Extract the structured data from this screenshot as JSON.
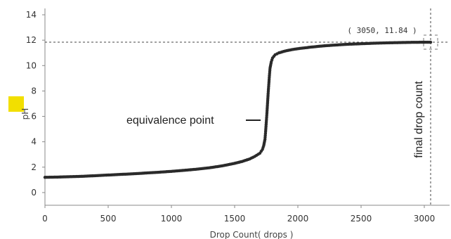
{
  "chart_data": {
    "type": "scatter",
    "xlabel": "Drop Count( drops )",
    "ylabel": "pH",
    "xlim": [
      0,
      3200
    ],
    "ylim": [
      -1,
      14.5
    ],
    "x_ticks": [
      "0",
      "500",
      "1000",
      "1500",
      "2000",
      "2500",
      "3000"
    ],
    "y_ticks": [
      "0",
      "2",
      "4",
      "6",
      "8",
      "10",
      "12",
      "14"
    ],
    "grid": false,
    "legend": "none",
    "series": [
      {
        "color": "#2a2a2a",
        "points": [
          [
            0,
            1.2
          ],
          [
            100,
            1.22
          ],
          [
            200,
            1.25
          ],
          [
            300,
            1.28
          ],
          [
            400,
            1.33
          ],
          [
            500,
            1.38
          ],
          [
            600,
            1.43
          ],
          [
            700,
            1.48
          ],
          [
            800,
            1.54
          ],
          [
            900,
            1.6
          ],
          [
            1000,
            1.67
          ],
          [
            1100,
            1.75
          ],
          [
            1200,
            1.84
          ],
          [
            1300,
            1.95
          ],
          [
            1400,
            2.1
          ],
          [
            1500,
            2.3
          ],
          [
            1560,
            2.45
          ],
          [
            1620,
            2.65
          ],
          [
            1660,
            2.85
          ],
          [
            1700,
            3.1
          ],
          [
            1720,
            3.4
          ],
          [
            1730,
            3.7
          ],
          [
            1740,
            4.2
          ],
          [
            1745,
            4.8
          ],
          [
            1750,
            5.5
          ],
          [
            1755,
            6.2
          ],
          [
            1760,
            7.0
          ],
          [
            1765,
            7.8
          ],
          [
            1770,
            8.5
          ],
          [
            1775,
            9.2
          ],
          [
            1780,
            9.8
          ],
          [
            1790,
            10.3
          ],
          [
            1800,
            10.6
          ],
          [
            1820,
            10.85
          ],
          [
            1850,
            11.0
          ],
          [
            1900,
            11.15
          ],
          [
            1950,
            11.25
          ],
          [
            2000,
            11.33
          ],
          [
            2100,
            11.45
          ],
          [
            2200,
            11.55
          ],
          [
            2300,
            11.62
          ],
          [
            2400,
            11.68
          ],
          [
            2500,
            11.72
          ],
          [
            2600,
            11.76
          ],
          [
            2700,
            11.79
          ],
          [
            2800,
            11.81
          ],
          [
            2900,
            11.83
          ],
          [
            3000,
            11.84
          ],
          [
            3050,
            11.84
          ]
        ]
      }
    ],
    "annotations": {
      "equivalence": "equivalence point",
      "final": "final drop count",
      "readout": "( 3050, 11.84 )",
      "final_point": [
        3050,
        11.84
      ]
    },
    "highlight_color": "#f2df00"
  }
}
